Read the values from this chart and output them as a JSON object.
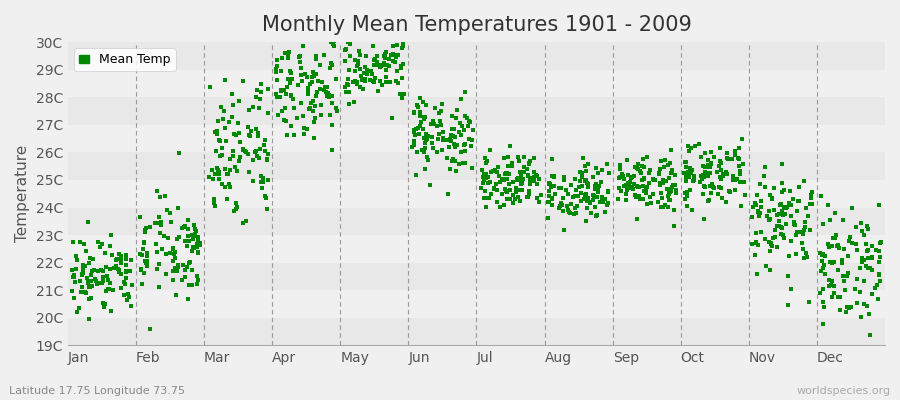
{
  "title": "Monthly Mean Temperatures 1901 - 2009",
  "ylabel": "Temperature",
  "subtitle": "Latitude 17.75 Longitude 73.75",
  "watermark": "worldspecies.org",
  "dot_color": "#008800",
  "dot_size": 5,
  "ylim_min": 19,
  "ylim_max": 30,
  "ytick_labels": [
    "19C",
    "20C",
    "21C",
    "22C",
    "23C",
    "24C",
    "25C",
    "26C",
    "27C",
    "28C",
    "29C",
    "30C"
  ],
  "ytick_values": [
    19,
    20,
    21,
    22,
    23,
    24,
    25,
    26,
    27,
    28,
    29,
    30
  ],
  "month_names": [
    "Jan",
    "Feb",
    "Mar",
    "Apr",
    "May",
    "Jun",
    "Jul",
    "Aug",
    "Sep",
    "Oct",
    "Nov",
    "Dec"
  ],
  "month_tick_positions": [
    0,
    1,
    2,
    3,
    4,
    5,
    6,
    7,
    8,
    9,
    10,
    11
  ],
  "vline_positions": [
    1,
    2,
    3,
    4,
    5,
    6,
    7,
    8,
    9,
    10,
    11
  ],
  "bg_color": "#f0f0f0",
  "plot_bg_color": "#f0f0f0",
  "band_colors": [
    "#e8e8e8",
    "#f0f0f0"
  ],
  "legend_label": "Mean Temp",
  "title_fontsize": 15,
  "axis_fontsize": 11,
  "tick_fontsize": 10,
  "monthly_means": [
    21.5,
    22.5,
    26.0,
    28.5,
    29.0,
    26.5,
    25.0,
    24.5,
    24.8,
    25.2,
    23.5,
    22.0
  ],
  "monthly_stds": [
    0.8,
    0.9,
    1.2,
    0.9,
    0.8,
    0.7,
    0.5,
    0.5,
    0.5,
    0.6,
    1.0,
    1.0
  ],
  "num_years": 109,
  "random_seed": 42
}
